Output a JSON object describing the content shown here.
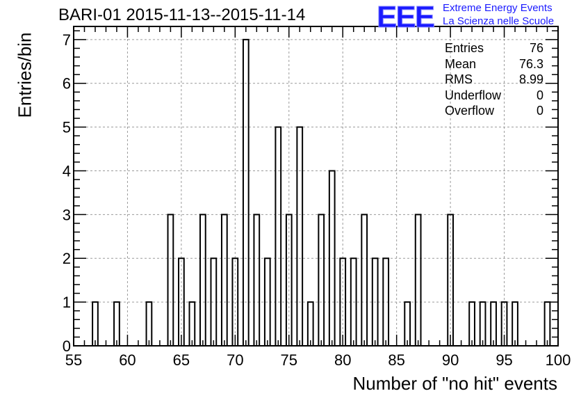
{
  "title": "BARI-01 2015-11-13--2015-11-14",
  "logo": {
    "mark": "EEE",
    "line1": "Extreme Energy Events",
    "line2": "La Scienza nelle Scuole",
    "color": "#1a1aff"
  },
  "stats": {
    "entries_label": "Entries",
    "entries_value": "76",
    "mean_label": "Mean",
    "mean_value": "76.3",
    "rms_label": "RMS",
    "rms_value": "8.99",
    "underflow_label": "Underflow",
    "underflow_value": "0",
    "overflow_label": "Overflow",
    "overflow_value": "0"
  },
  "chart_data": {
    "type": "bar",
    "title": "BARI-01 2015-11-13--2015-11-14",
    "xlabel": "Number of \"no hit\" events",
    "ylabel": "Entries/bin",
    "xlim": [
      55,
      100
    ],
    "ylim": [
      0,
      7.3
    ],
    "grid": true,
    "x_ticks": [
      55,
      60,
      65,
      70,
      75,
      80,
      85,
      90,
      95,
      100
    ],
    "y_ticks": [
      0,
      1,
      2,
      3,
      4,
      5,
      6,
      7
    ],
    "bins": [
      {
        "x": 57,
        "count": 1
      },
      {
        "x": 59,
        "count": 1
      },
      {
        "x": 62,
        "count": 1
      },
      {
        "x": 64,
        "count": 3
      },
      {
        "x": 65,
        "count": 2
      },
      {
        "x": 66,
        "count": 1
      },
      {
        "x": 67,
        "count": 3
      },
      {
        "x": 68,
        "count": 2
      },
      {
        "x": 69,
        "count": 3
      },
      {
        "x": 70,
        "count": 2
      },
      {
        "x": 71,
        "count": 7
      },
      {
        "x": 72,
        "count": 3
      },
      {
        "x": 73,
        "count": 2
      },
      {
        "x": 74,
        "count": 5
      },
      {
        "x": 75,
        "count": 3
      },
      {
        "x": 76,
        "count": 5
      },
      {
        "x": 77,
        "count": 1
      },
      {
        "x": 78,
        "count": 3
      },
      {
        "x": 79,
        "count": 4
      },
      {
        "x": 80,
        "count": 2
      },
      {
        "x": 81,
        "count": 2
      },
      {
        "x": 82,
        "count": 3
      },
      {
        "x": 83,
        "count": 2
      },
      {
        "x": 84,
        "count": 2
      },
      {
        "x": 86,
        "count": 1
      },
      {
        "x": 87,
        "count": 3
      },
      {
        "x": 90,
        "count": 3
      },
      {
        "x": 92,
        "count": 1
      },
      {
        "x": 93,
        "count": 1
      },
      {
        "x": 94,
        "count": 1
      },
      {
        "x": 95,
        "count": 1
      },
      {
        "x": 96,
        "count": 1
      },
      {
        "x": 99,
        "count": 1
      }
    ]
  }
}
